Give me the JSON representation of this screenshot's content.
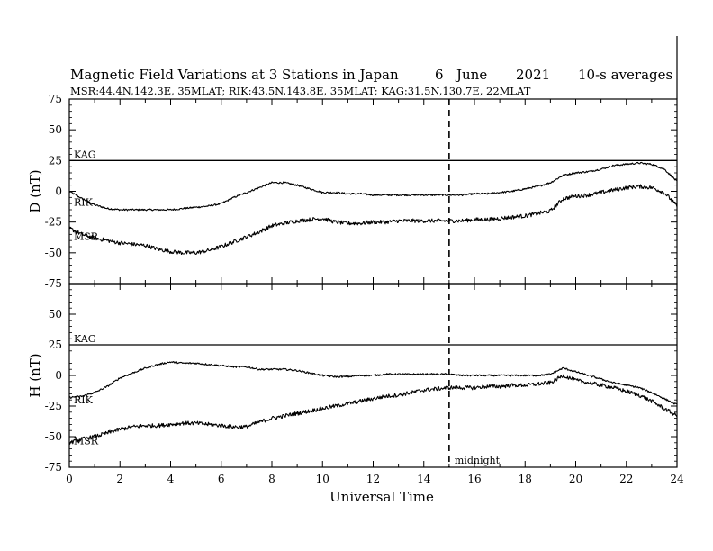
{
  "header": {
    "title": "Magnetic Field Variations at 3 Stations in Japan",
    "day": "6",
    "month": "June",
    "year": "2021",
    "averaging": "10-s averages",
    "subtitle": "MSR:44.4N,142.3E, 35MLAT;  RIK:43.5N,143.8E, 35MLAT;  KAG:31.5N,130.7E, 22MLAT"
  },
  "chart_data": [
    {
      "type": "line",
      "ylabel": "D (nT)",
      "ylim": [
        -75,
        75
      ],
      "yticks": [
        "75",
        "50",
        "25",
        "0",
        "-25",
        "-50",
        "-75"
      ],
      "xlim": [
        0,
        24
      ],
      "x": [
        0,
        0.5,
        1,
        1.5,
        2,
        2.5,
        3,
        3.5,
        4,
        4.5,
        5,
        5.5,
        6,
        6.5,
        7,
        7.5,
        8,
        8.5,
        9,
        9.5,
        10,
        10.5,
        11,
        11.5,
        12,
        12.5,
        13,
        13.5,
        14,
        14.5,
        15,
        15.5,
        16,
        16.5,
        17,
        17.5,
        18,
        18.5,
        19,
        19.5,
        20,
        20.5,
        21,
        21.5,
        22,
        22.5,
        23,
        23.5,
        24
      ],
      "series": [
        {
          "name": "KAG",
          "values": [
            25,
            25,
            25,
            25,
            25,
            25,
            25,
            25,
            25,
            25,
            25,
            25,
            25,
            25,
            25,
            25,
            25,
            25,
            25,
            25,
            25,
            25,
            25,
            25,
            25,
            25,
            25,
            25,
            25,
            25,
            25,
            25,
            25,
            25,
            25,
            25,
            25,
            25,
            25,
            25,
            25,
            25,
            25,
            25,
            25,
            25,
            25,
            25,
            25
          ]
        },
        {
          "name": "RIK",
          "values": [
            0,
            -6,
            -11,
            -14,
            -15,
            -15,
            -15,
            -15,
            -15,
            -14,
            -13,
            -12,
            -10,
            -5,
            -1,
            3,
            7,
            7,
            5,
            2,
            -1,
            -1,
            -2,
            -2,
            -3,
            -3,
            -3,
            -3,
            -3,
            -3,
            -3,
            -3,
            -2,
            -2,
            -1,
            0,
            2,
            4,
            7,
            13,
            15,
            16,
            18,
            21,
            22,
            23,
            22,
            18,
            8
          ]
        },
        {
          "name": "MSR",
          "values": [
            -30,
            -35,
            -38,
            -40,
            -42,
            -43,
            -44,
            -47,
            -49,
            -50,
            -50,
            -48,
            -45,
            -41,
            -37,
            -33,
            -28,
            -26,
            -24,
            -23,
            -22,
            -25,
            -26,
            -26,
            -25,
            -25,
            -24,
            -24,
            -24,
            -24,
            -24,
            -24,
            -23,
            -23,
            -22,
            -21,
            -20,
            -18,
            -16,
            -6,
            -4,
            -3,
            -1,
            1,
            3,
            4,
            3,
            -1,
            -12
          ]
        }
      ]
    },
    {
      "type": "line",
      "ylabel": "H (nT)",
      "ylim": [
        -75,
        75
      ],
      "yticks": [
        "75",
        "50",
        "25",
        "0",
        "-25",
        "-50",
        "-75"
      ],
      "xlim": [
        0,
        24
      ],
      "xlabel": "Universal Time",
      "xticks": [
        "0",
        "2",
        "4",
        "6",
        "8",
        "10",
        "12",
        "14",
        "16",
        "18",
        "20",
        "22",
        "24"
      ],
      "x": [
        0,
        0.5,
        1,
        1.5,
        2,
        2.5,
        3,
        3.5,
        4,
        4.5,
        5,
        5.5,
        6,
        6.5,
        7,
        7.5,
        8,
        8.5,
        9,
        9.5,
        10,
        10.5,
        11,
        11.5,
        12,
        12.5,
        13,
        13.5,
        14,
        14.5,
        15,
        15.5,
        16,
        16.5,
        17,
        17.5,
        18,
        18.5,
        19,
        19.5,
        20,
        20.5,
        21,
        21.5,
        22,
        22.5,
        23,
        23.5,
        24
      ],
      "series": [
        {
          "name": "KAG",
          "values": [
            25,
            25,
            25,
            25,
            25,
            25,
            25,
            25,
            25,
            25,
            25,
            25,
            25,
            25,
            25,
            25,
            25,
            25,
            25,
            25,
            25,
            25,
            25,
            25,
            25,
            25,
            25,
            25,
            25,
            25,
            25,
            25,
            25,
            25,
            25,
            25,
            25,
            25,
            25,
            25,
            25,
            25,
            25,
            25,
            25,
            25,
            25,
            25,
            25
          ]
        },
        {
          "name": "RIK",
          "values": [
            -18,
            -17,
            -14,
            -9,
            -2,
            2,
            6,
            9,
            11,
            10,
            10,
            9,
            8,
            7,
            7,
            5,
            5,
            5,
            4,
            2,
            0,
            -1,
            -1,
            0,
            0,
            1,
            1,
            1,
            1,
            1,
            1,
            0,
            0,
            0,
            0,
            0,
            0,
            0,
            1,
            6,
            3,
            0,
            -3,
            -6,
            -8,
            -10,
            -14,
            -19,
            -24
          ]
        },
        {
          "name": "MSR",
          "values": [
            -55,
            -52,
            -50,
            -47,
            -44,
            -42,
            -41,
            -41,
            -40,
            -39,
            -39,
            -40,
            -41,
            -42,
            -42,
            -38,
            -35,
            -33,
            -31,
            -29,
            -27,
            -25,
            -23,
            -21,
            -19,
            -17,
            -16,
            -14,
            -12,
            -11,
            -10,
            -10,
            -10,
            -9,
            -9,
            -8,
            -8,
            -7,
            -6,
            0,
            -4,
            -6,
            -8,
            -10,
            -13,
            -16,
            -21,
            -27,
            -33
          ]
        }
      ]
    }
  ],
  "annotations": {
    "midnight_label": "midnight",
    "midnight_ut": 15
  },
  "colors": {
    "line": "#000000",
    "background": "#ffffff"
  }
}
